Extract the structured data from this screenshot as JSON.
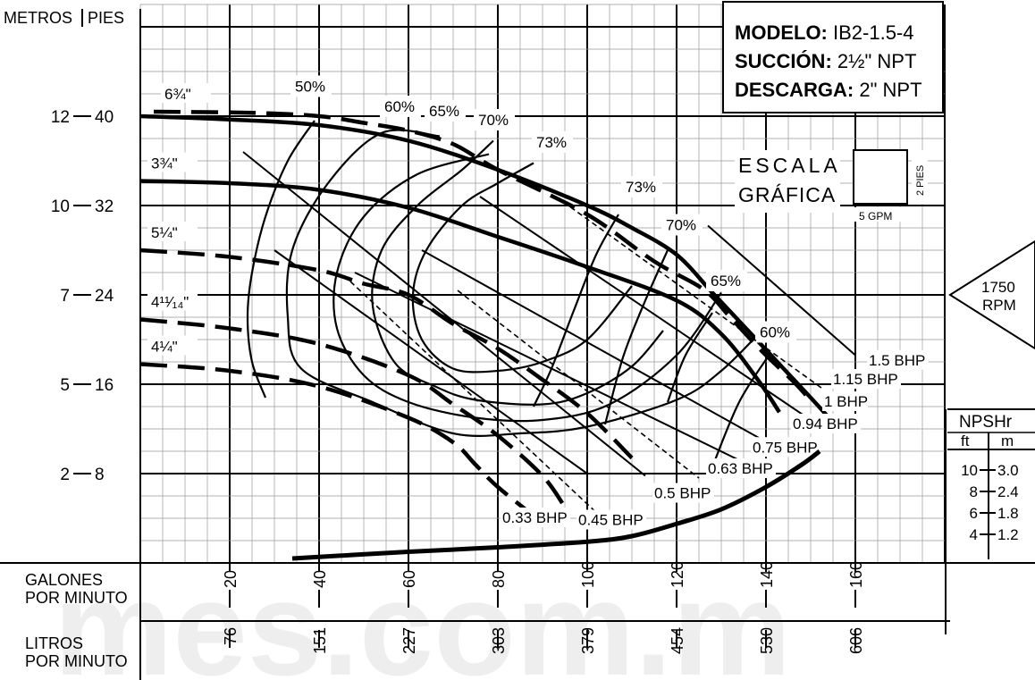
{
  "chart_data": {
    "type": "line",
    "title": "",
    "model_box": {
      "modelo_key": "MODELO:",
      "modelo_val": " IB2-1.5-4",
      "succion_key": "SUCCIÓN:",
      "succion_val": " 2½\" NPT",
      "descarga_key": "DESCARGA:",
      "descarga_val": " 2\" NPT"
    },
    "rpm": {
      "value": "1750",
      "unit": "RPM"
    },
    "scale_box": {
      "line1": "ESCALA",
      "line2": "GRÁFICA",
      "vertical_label": "2 PIES",
      "horizontal_label": "5 GPM"
    },
    "y_axis": {
      "left_header": "METROS",
      "right_header": "PIES",
      "ft_ticks": [
        {
          "ft": 8,
          "label": "8",
          "m": "2"
        },
        {
          "ft": 16,
          "label": "16",
          "m": "5"
        },
        {
          "ft": 24,
          "label": "24",
          "m": "7"
        },
        {
          "ft": 32,
          "label": "32",
          "m": "10"
        },
        {
          "ft": 40,
          "label": "40",
          "m": "12"
        }
      ],
      "range_ft": [
        0,
        50
      ]
    },
    "x_axis": {
      "gpm_label_1": "GALONES",
      "gpm_label_2": "POR MINUTO",
      "lpm_label_1": "LITROS",
      "lpm_label_2": "POR MINUTO",
      "gpm_ticks": [
        "20",
        "40",
        "60",
        "80",
        "100",
        "120",
        "140",
        "160"
      ],
      "lpm_ticks": [
        "76",
        "151",
        "227",
        "303",
        "379",
        "454",
        "530",
        "606"
      ],
      "range_gpm": [
        0,
        180
      ]
    },
    "npshr": {
      "title": "NPSHr",
      "col_ft": "ft",
      "col_m": "m",
      "rows": [
        {
          "ft": "10",
          "m": "3.0"
        },
        {
          "ft": "8",
          "m": "2.4"
        },
        {
          "ft": "6",
          "m": "1.8"
        },
        {
          "ft": "4",
          "m": "1.2"
        }
      ]
    },
    "impeller_curves": [
      {
        "name": "6¾\"",
        "style": "dashed",
        "points": [
          [
            3,
            40.4
          ],
          [
            25,
            40.3
          ],
          [
            40,
            40
          ],
          [
            50,
            39.4
          ],
          [
            60,
            38.7
          ],
          [
            70,
            37.5
          ],
          [
            80,
            35.2
          ],
          [
            100,
            31.2
          ],
          [
            115,
            27
          ],
          [
            126,
            24.5
          ],
          [
            132,
            22
          ],
          [
            139,
            19
          ],
          [
            146,
            16.3
          ],
          [
            149,
            15
          ]
        ]
      },
      {
        "name": "",
        "style": "solid",
        "points": [
          [
            0,
            40
          ],
          [
            20,
            39.7
          ],
          [
            40,
            39.2
          ],
          [
            60,
            37.8
          ],
          [
            80,
            35.2
          ],
          [
            100,
            32
          ],
          [
            110,
            30
          ],
          [
            120,
            27.6
          ],
          [
            128,
            24.2
          ],
          [
            136,
            20.8
          ],
          [
            143,
            17.8
          ],
          [
            150,
            14.8
          ],
          [
            155,
            12.6
          ]
        ]
      },
      {
        "name": "3¾\"",
        "style": "solid",
        "points": [
          [
            0,
            34.2
          ],
          [
            20,
            34
          ],
          [
            40,
            33.4
          ],
          [
            60,
            31.8
          ],
          [
            80,
            29.2
          ],
          [
            100,
            26.5
          ],
          [
            120,
            23.5
          ],
          [
            130,
            20.5
          ],
          [
            138,
            16.5
          ],
          [
            143,
            13.5
          ]
        ]
      },
      {
        "name": "5¼\"",
        "style": "dashed",
        "points": [
          [
            0,
            28
          ],
          [
            20,
            27.4
          ],
          [
            40,
            26.2
          ],
          [
            50,
            25
          ],
          [
            60,
            24
          ],
          [
            70,
            21.4
          ],
          [
            80,
            19.2
          ],
          [
            90,
            16.4
          ],
          [
            100,
            13.4
          ],
          [
            110,
            9.4
          ]
        ]
      },
      {
        "name": "4¹¹⁄₁₄\"",
        "style": "dashed",
        "points": [
          [
            0,
            21.8
          ],
          [
            20,
            21
          ],
          [
            40,
            19.6
          ],
          [
            60,
            16.8
          ],
          [
            70,
            14.2
          ],
          [
            80,
            11.4
          ],
          [
            90,
            7.8
          ],
          [
            95,
            5
          ]
        ]
      },
      {
        "name": "4¼\"",
        "style": "dashed",
        "points": [
          [
            0,
            17.8
          ],
          [
            20,
            17.2
          ],
          [
            40,
            15.8
          ],
          [
            60,
            13
          ],
          [
            70,
            10.8
          ],
          [
            75,
            8.8
          ],
          [
            80,
            6.8
          ],
          [
            90,
            3.6
          ]
        ]
      }
    ],
    "efficiency_curves": [
      {
        "name": "50%",
        "label_at": [
          38,
          42.2
        ],
        "points": [
          [
            28,
            14.8
          ],
          [
            25,
            18
          ],
          [
            24,
            22
          ],
          [
            25,
            26
          ],
          [
            28,
            31
          ],
          [
            33,
            36
          ],
          [
            39,
            39.6
          ]
        ]
      },
      {
        "name": "60%",
        "label_at": [
          58,
          40.4
        ],
        "points": [
          [
            140,
            21.2
          ],
          [
            130,
            17.2
          ],
          [
            120,
            14.6
          ],
          [
            100,
            12.2
          ],
          [
            85,
            11.6
          ],
          [
            70,
            11.6
          ],
          [
            52,
            14.4
          ],
          [
            36,
            17.4
          ],
          [
            33,
            22
          ],
          [
            34,
            28
          ],
          [
            42,
            34
          ],
          [
            54,
            38.5
          ],
          [
            67,
            38.2
          ]
        ]
      },
      {
        "name": "65%",
        "label_at": [
          68,
          40
        ],
        "points": [
          [
            130,
            24.2
          ],
          [
            120,
            18.6
          ],
          [
            105,
            14.2
          ],
          [
            90,
            12.8
          ],
          [
            75,
            13
          ],
          [
            60,
            14.4
          ],
          [
            50,
            16.8
          ],
          [
            44,
            21
          ],
          [
            44,
            26
          ],
          [
            50,
            31
          ],
          [
            62,
            34.8
          ],
          [
            78,
            36.6
          ]
        ]
      },
      {
        "name": "70%",
        "label_at": [
          79,
          39.2
        ],
        "points": [
          [
            117,
            20.8
          ],
          [
            110,
            17.6
          ],
          [
            100,
            15.2
          ],
          [
            90,
            14.2
          ],
          [
            75,
            14.6
          ],
          [
            66,
            15.8
          ],
          [
            57,
            17.9
          ],
          [
            52,
            23
          ],
          [
            54,
            28
          ],
          [
            62,
            32
          ],
          [
            72,
            35.2
          ],
          [
            79,
            37.8
          ]
        ]
      },
      {
        "name": "73%",
        "label_at": [
          92,
          37.2
        ],
        "points": [
          [
            110,
            24.8
          ],
          [
            100,
            20
          ],
          [
            90,
            18
          ],
          [
            80,
            17.2
          ],
          [
            70,
            17.4
          ],
          [
            63,
            20
          ],
          [
            61,
            24
          ],
          [
            64,
            28
          ],
          [
            72,
            32
          ],
          [
            80,
            34
          ],
          [
            88,
            35.8
          ]
        ]
      },
      {
        "name": "73%",
        "label_at": [
          112,
          33.2
        ],
        "points": [
          [
            107,
            31.2
          ],
          [
            102,
            27.6
          ],
          [
            97,
            22.6
          ],
          [
            92,
            17.4
          ],
          [
            88,
            14
          ]
        ]
      },
      {
        "name": "70%",
        "label_at": [
          121,
          29.8
        ],
        "points": [
          [
            118,
            28
          ],
          [
            113,
            23.5
          ],
          [
            108,
            18.4
          ],
          [
            104,
            12.4
          ]
        ]
      },
      {
        "name": "65%",
        "label_at": [
          131,
          24.8
        ],
        "points": [
          [
            128,
            22.4
          ],
          [
            122,
            18.6
          ],
          [
            118,
            14.4
          ]
        ]
      },
      {
        "name": "60%",
        "label_at": [
          142,
          20.2
        ],
        "points": [
          [
            141,
            18.8
          ],
          [
            134,
            14.4
          ],
          [
            128,
            8.6
          ]
        ]
      }
    ],
    "bhp_lines": [
      {
        "name": "1.5 BHP",
        "style": "solid",
        "points": [
          [
            127,
            30.2
          ],
          [
            160,
            18.6
          ]
        ],
        "label_at": [
          163,
          17.7
        ]
      },
      {
        "name": "1.15 BHP",
        "style": "dashed",
        "points": [
          [
            93,
            32.8
          ],
          [
            153,
            15.5
          ]
        ],
        "label_at": [
          155,
          16
        ]
      },
      {
        "name": "1 BHP",
        "style": "solid",
        "points": [
          [
            76,
            32.8
          ],
          [
            150,
            12.8
          ]
        ],
        "label_at": [
          153,
          14
        ]
      },
      {
        "name": "0.94 BHP",
        "style": "solid",
        "points": [
          [
            63,
            28
          ],
          [
            142,
            10.4
          ]
        ],
        "label_at": [
          146,
          12
        ]
      },
      {
        "name": "0.75 BHP",
        "style": "solid",
        "points": [
          [
            48,
            26
          ],
          [
            134,
            9.2
          ]
        ],
        "label_at": [
          137,
          9.9
        ]
      },
      {
        "name": "0.63 BHP",
        "style": "dashed",
        "points": [
          [
            71,
            24.4
          ],
          [
            125,
            7.6
          ]
        ],
        "label_at": [
          127,
          8
        ]
      },
      {
        "name": "0.5 BHP",
        "style": "solid",
        "points": [
          [
            23,
            36.8
          ],
          [
            113,
            7.8
          ]
        ],
        "label_at": [
          115,
          5.8
        ]
      },
      {
        "name": "0.45 BHP",
        "style": "dashed",
        "points": [
          [
            47,
            25.2
          ],
          [
            105,
            3.4
          ]
        ],
        "label_at": [
          98,
          3.4
        ]
      },
      {
        "name": "0.33 BHP",
        "style": "solid",
        "points": [
          [
            30,
            28
          ],
          [
            100,
            8
          ]
        ],
        "label_at": [
          81,
          3.6
        ]
      }
    ],
    "npshr_curve": {
      "points": [
        [
          34,
          0.4
        ],
        [
          60,
          1
        ],
        [
          80,
          1.4
        ],
        [
          100,
          1.9
        ],
        [
          110,
          2.4
        ],
        [
          120,
          3.5
        ],
        [
          130,
          4.8
        ],
        [
          140,
          6.8
        ],
        [
          148,
          8.8
        ],
        [
          152,
          10
        ]
      ]
    }
  }
}
